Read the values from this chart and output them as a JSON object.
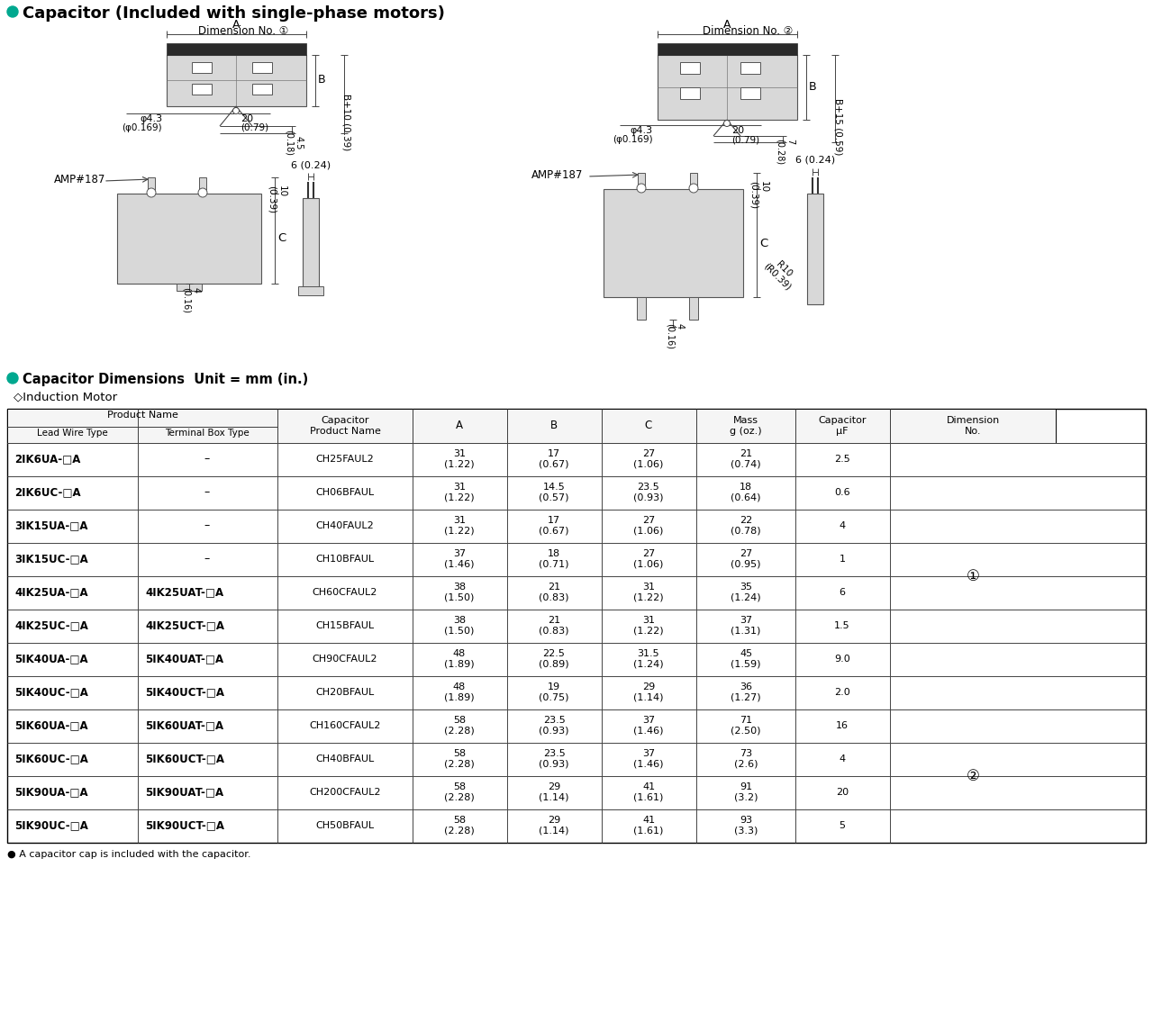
{
  "title": "Capacitor (Included with single-phase motors)",
  "title_bullet_color": "#00A88F",
  "dim1_label": "Dimension No. ①",
  "dim2_label": "Dimension No. ②",
  "section2_title": "Capacitor Dimensions  Unit = mm (in.)",
  "section2_subtitle": "◇Induction Motor",
  "rows": [
    {
      "lead": "2IK6UA-□A",
      "term": "–",
      "cap": "CH25FAUL2",
      "A": "31\n(1.22)",
      "B": "17\n(0.67)",
      "C": "27\n(1.06)",
      "mass": "21\n(0.74)",
      "uF": "2.5"
    },
    {
      "lead": "2IK6UC-□A",
      "term": "–",
      "cap": "CH06BFAUL",
      "A": "31\n(1.22)",
      "B": "14.5\n(0.57)",
      "C": "23.5\n(0.93)",
      "mass": "18\n(0.64)",
      "uF": "0.6"
    },
    {
      "lead": "3IK15UA-□A",
      "term": "–",
      "cap": "CH40FAUL2",
      "A": "31\n(1.22)",
      "B": "17\n(0.67)",
      "C": "27\n(1.06)",
      "mass": "22\n(0.78)",
      "uF": "4"
    },
    {
      "lead": "3IK15UC-□A",
      "term": "–",
      "cap": "CH10BFAUL",
      "A": "37\n(1.46)",
      "B": "18\n(0.71)",
      "C": "27\n(1.06)",
      "mass": "27\n(0.95)",
      "uF": "1"
    },
    {
      "lead": "4IK25UA-□A",
      "term": "4IK25UAT-□A",
      "cap": "CH60CFAUL2",
      "A": "38\n(1.50)",
      "B": "21\n(0.83)",
      "C": "31\n(1.22)",
      "mass": "35\n(1.24)",
      "uF": "6"
    },
    {
      "lead": "4IK25UC-□A",
      "term": "4IK25UCT-□A",
      "cap": "CH15BFAUL",
      "A": "38\n(1.50)",
      "B": "21\n(0.83)",
      "C": "31\n(1.22)",
      "mass": "37\n(1.31)",
      "uF": "1.5"
    },
    {
      "lead": "5IK40UA-□A",
      "term": "5IK40UAT-□A",
      "cap": "CH90CFAUL2",
      "A": "48\n(1.89)",
      "B": "22.5\n(0.89)",
      "C": "31.5\n(1.24)",
      "mass": "45\n(1.59)",
      "uF": "9.0"
    },
    {
      "lead": "5IK40UC-□A",
      "term": "5IK40UCT-□A",
      "cap": "CH20BFAUL",
      "A": "48\n(1.89)",
      "B": "19\n(0.75)",
      "C": "29\n(1.14)",
      "mass": "36\n(1.27)",
      "uF": "2.0"
    },
    {
      "lead": "5IK60UA-□A",
      "term": "5IK60UAT-□A",
      "cap": "CH160CFAUL2",
      "A": "58\n(2.28)",
      "B": "23.5\n(0.93)",
      "C": "37\n(1.46)",
      "mass": "71\n(2.50)",
      "uF": "16"
    },
    {
      "lead": "5IK60UC-□A",
      "term": "5IK60UCT-□A",
      "cap": "CH40BFAUL",
      "A": "58\n(2.28)",
      "B": "23.5\n(0.93)",
      "C": "37\n(1.46)",
      "mass": "73\n(2.6)",
      "uF": "4"
    },
    {
      "lead": "5IK90UA-□A",
      "term": "5IK90UAT-□A",
      "cap": "CH200CFAUL2",
      "A": "58\n(2.28)",
      "B": "29\n(1.14)",
      "C": "41\n(1.61)",
      "mass": "91\n(3.2)",
      "uF": "20"
    },
    {
      "lead": "5IK90UC-□A",
      "term": "5IK90UCT-□A",
      "cap": "CH50BFAUL",
      "A": "58\n(2.28)",
      "B": "29\n(1.14)",
      "C": "41\n(1.61)",
      "mass": "93\n(3.3)",
      "uF": "5"
    }
  ],
  "footnote": "● A capacitor cap is included with the capacitor.",
  "dim_group1_rows": [
    0,
    1,
    2,
    3,
    4,
    5,
    6,
    7
  ],
  "dim_group2_rows": [
    8,
    9,
    10,
    11
  ]
}
